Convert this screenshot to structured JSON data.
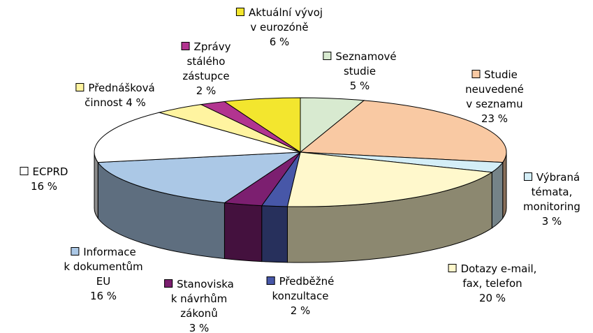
{
  "chart_data": {
    "type": "pie",
    "start_angle": 0,
    "direction": "clockwise",
    "categories": [
      "Seznamové\nstudie",
      "Studie neuvedené\nv seznamu",
      "Výbraná\ntémata,\nmonitoring",
      "Dotazy e-mail,\nfax, telefon",
      "Předběžné\nkonzultace",
      "Stanoviska\nk návrhům\nzákonů",
      "Informace\nk dokumentům\nEU",
      "ECPRD",
      "Přednášková\nčinnost",
      "Zprávy\nstálého\nzástupce",
      "Aktuální vývoj\nv eurozóně"
    ],
    "values": [
      5,
      23,
      3,
      20,
      2,
      3,
      16,
      16,
      4,
      2,
      6
    ],
    "value_labels": [
      "5 %",
      "23 %",
      "3 %",
      "20 %",
      "2 %",
      "3 %",
      "16 %",
      "16 %",
      "4 %",
      "2 %",
      "6 %"
    ],
    "colors": [
      "#d8ead0",
      "#f9c9a3",
      "#d4eef7",
      "#fff8cc",
      "#4757a8",
      "#7c1f70",
      "#abc8e6",
      "#ffffff",
      "#fff4a0",
      "#b23490",
      "#f3e62e"
    ]
  }
}
